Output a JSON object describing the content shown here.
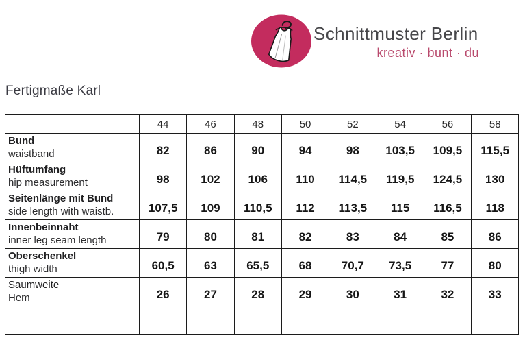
{
  "colors": {
    "logo-circle": "#c32c5e",
    "brand-text": "#47474a",
    "tagline-text": "#b94a6d",
    "table-border": "#1c1c1c",
    "body-text": "#202022"
  },
  "logo": {
    "brand": "Schnittmuster Berlin",
    "tagline": "kreativ · bunt · du"
  },
  "page": {
    "title": "Fertigmaße Karl"
  },
  "table": {
    "size_headers": [
      "44",
      "46",
      "48",
      "50",
      "52",
      "54",
      "56",
      "58"
    ],
    "rows": [
      {
        "label_de": "Bund",
        "label_en": "waistband",
        "de_bold": true,
        "values": [
          "82",
          "86",
          "90",
          "94",
          "98",
          "103,5",
          "109,5",
          "115,5"
        ]
      },
      {
        "label_de": "Hüftumfang",
        "label_en": "hip measurement",
        "de_bold": true,
        "values": [
          "98",
          "102",
          "106",
          "110",
          "114,5",
          "119,5",
          "124,5",
          "130"
        ]
      },
      {
        "label_de": "Seitenlänge mit Bund",
        "label_en": "side length with waistb.",
        "de_bold": true,
        "values": [
          "107,5",
          "109",
          "110,5",
          "112",
          "113,5",
          "115",
          "116,5",
          "118"
        ]
      },
      {
        "label_de": "Innenbeinnaht",
        "label_en": "inner leg seam length",
        "de_bold": true,
        "values": [
          "79",
          "80",
          "81",
          "82",
          "83",
          "84",
          "85",
          "86"
        ]
      },
      {
        "label_de": "Oberschenkel",
        "label_en": "thigh width",
        "de_bold": true,
        "values": [
          "60,5",
          "63",
          "65,5",
          "68",
          "70,7",
          "73,5",
          "77",
          "80"
        ]
      },
      {
        "label_de": "Saumweite",
        "label_en": "Hem",
        "de_bold": false,
        "values": [
          "26",
          "27",
          "28",
          "29",
          "30",
          "31",
          "32",
          "33"
        ]
      },
      {
        "label_de": "",
        "label_en": "",
        "de_bold": false,
        "values": [
          "",
          "",
          "",
          "",
          "",
          "",
          "",
          ""
        ]
      }
    ]
  }
}
